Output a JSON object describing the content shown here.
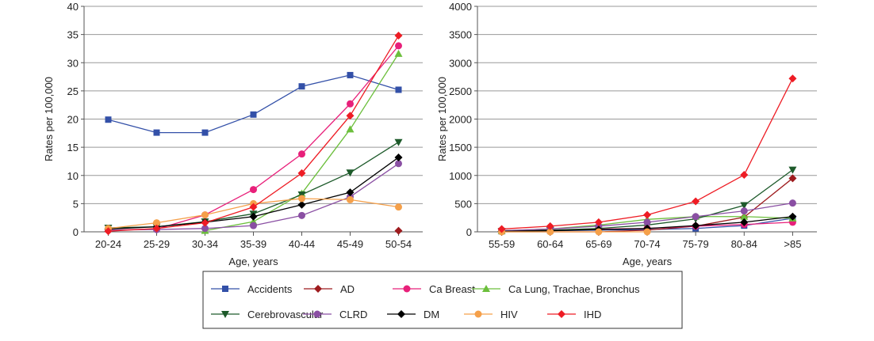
{
  "series_styles": [
    {
      "name": "Accidents",
      "color": "#3350a8",
      "marker": "square"
    },
    {
      "name": "AD",
      "color": "#9e1b1e",
      "marker": "diamond"
    },
    {
      "name": "Ca Breast",
      "color": "#e8207a",
      "marker": "circle"
    },
    {
      "name": "Ca Lung, Trachae, Bronchus",
      "color": "#6cbf3c",
      "marker": "triangle-up"
    },
    {
      "name": "Cerebrovascular",
      "color": "#1d5a2a",
      "marker": "triangle-down"
    },
    {
      "name": "CLRD",
      "color": "#8a4fa3",
      "marker": "circle"
    },
    {
      "name": "DM",
      "color": "#000000",
      "marker": "diamond"
    },
    {
      "name": "HIV",
      "color": "#f5a04a",
      "marker": "circle"
    },
    {
      "name": "IHD",
      "color": "#ee1c24",
      "marker": "diamond"
    }
  ],
  "chart_data": [
    {
      "type": "line",
      "xlabel": "Age, years",
      "ylabel": "Rates per 100,000",
      "ylim": [
        0,
        40
      ],
      "yticks": [
        0,
        5,
        10,
        15,
        20,
        25,
        30,
        35,
        40
      ],
      "grid": true,
      "categories": [
        "20-24",
        "25-29",
        "30-34",
        "35-39",
        "40-44",
        "45-49",
        "50-54"
      ],
      "series": [
        {
          "name": "Accidents",
          "values": [
            19.9,
            17.6,
            17.6,
            20.8,
            25.8,
            27.8,
            25.2
          ]
        },
        {
          "name": "AD",
          "values": [
            null,
            null,
            null,
            null,
            null,
            null,
            0.2
          ]
        },
        {
          "name": "Ca Breast",
          "values": [
            0.3,
            0.5,
            3.0,
            7.5,
            13.8,
            22.7,
            33.0
          ]
        },
        {
          "name": "Ca Lung, Trachae, Bronchus",
          "values": [
            null,
            null,
            0.2,
            1.8,
            6.8,
            18.2,
            31.6
          ]
        },
        {
          "name": "Cerebrovascular",
          "values": [
            0.7,
            0.9,
            1.8,
            3.2,
            6.6,
            10.5,
            15.9
          ]
        },
        {
          "name": "CLRD",
          "values": [
            0.3,
            0.4,
            0.6,
            1.1,
            2.9,
            6.2,
            12.1
          ]
        },
        {
          "name": "DM",
          "values": [
            0.5,
            0.9,
            1.7,
            2.7,
            4.8,
            7.0,
            13.2
          ]
        },
        {
          "name": "HIV",
          "values": [
            0.6,
            1.6,
            3.0,
            5.0,
            5.9,
            5.7,
            4.4
          ]
        },
        {
          "name": "IHD",
          "values": [
            0.1,
            0.6,
            1.6,
            4.4,
            10.4,
            20.6,
            34.8
          ]
        }
      ]
    },
    {
      "type": "line",
      "xlabel": "Age, years",
      "ylabel": "Rates per 100,000",
      "ylim": [
        0,
        4000
      ],
      "yticks": [
        0,
        500,
        1000,
        1500,
        2000,
        2500,
        3000,
        3500,
        4000
      ],
      "grid": true,
      "categories": [
        "55-59",
        "60-64",
        "65-69",
        "70-74",
        "75-79",
        "80-84",
        ">85"
      ],
      "series": [
        {
          "name": "Accidents",
          "values": [
            10,
            20,
            30,
            40,
            60,
            110,
            240
          ]
        },
        {
          "name": "AD",
          "values": [
            0,
            0,
            0,
            30,
            100,
            260,
            950
          ]
        },
        {
          "name": "Ca Breast",
          "values": [
            20,
            30,
            50,
            60,
            100,
            130,
            170
          ]
        },
        {
          "name": "Ca Lung, Trachae, Bronchus",
          "values": [
            20,
            50,
            120,
            220,
            270,
            270,
            240
          ]
        },
        {
          "name": "Cerebrovascular",
          "values": [
            10,
            30,
            60,
            120,
            230,
            470,
            1100
          ]
        },
        {
          "name": "CLRD",
          "values": [
            20,
            50,
            100,
            170,
            270,
            370,
            510
          ]
        },
        {
          "name": "DM",
          "values": [
            10,
            20,
            40,
            60,
            110,
            170,
            270
          ]
        },
        {
          "name": "HIV",
          "values": [
            0,
            0,
            0,
            0,
            null,
            null,
            null
          ]
        },
        {
          "name": "IHD",
          "values": [
            50,
            100,
            170,
            300,
            540,
            1010,
            2720
          ]
        }
      ]
    }
  ],
  "legend": {
    "position": "bottom"
  }
}
